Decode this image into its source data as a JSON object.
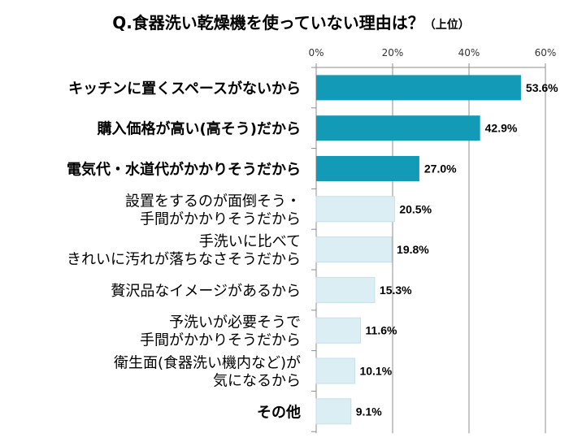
{
  "chart_data": {
    "type": "bar",
    "orientation": "horizontal",
    "title": "Q.食器洗い乾燥機を使っていない理由は？",
    "subtitle": "（上位）",
    "categories": [
      [
        "キッチンに置くスペースがないから"
      ],
      [
        "購入価格が高い(高そう)だから"
      ],
      [
        "電気代・水道代がかかりそうだから"
      ],
      [
        "設置をするのが面倒そう・",
        "手間がかかりそうだから"
      ],
      [
        "手洗いに比べて",
        "きれいに汚れが落ちなさそうだから"
      ],
      [
        "贅沢品なイメージがあるから"
      ],
      [
        "予洗いが必要そうで",
        "手間がかかりそうだから"
      ],
      [
        "衛生面(食器洗い機内など)が",
        "気になるから"
      ],
      [
        "その他"
      ]
    ],
    "values": [
      53.6,
      42.9,
      27.0,
      20.5,
      19.8,
      15.3,
      11.6,
      10.1,
      9.1
    ],
    "value_labels": [
      "53.6%",
      "42.9%",
      "27.0%",
      "20.5%",
      "19.8%",
      "15.3%",
      "11.6%",
      "10.1%",
      "9.1%"
    ],
    "highlighted": [
      true,
      true,
      true,
      false,
      false,
      false,
      false,
      false,
      false
    ],
    "xlim": [
      0,
      60
    ],
    "xticks": [
      "0%",
      "20%",
      "40%",
      "60%"
    ],
    "xtick_values": [
      0,
      20,
      40,
      60
    ],
    "xaxis_position": "top",
    "grid": true,
    "colors": {
      "highlight": "#139ab6",
      "normal": "#dbeef4",
      "normal_border": "#c5dfe8",
      "grid": "#8c8c8c"
    }
  }
}
